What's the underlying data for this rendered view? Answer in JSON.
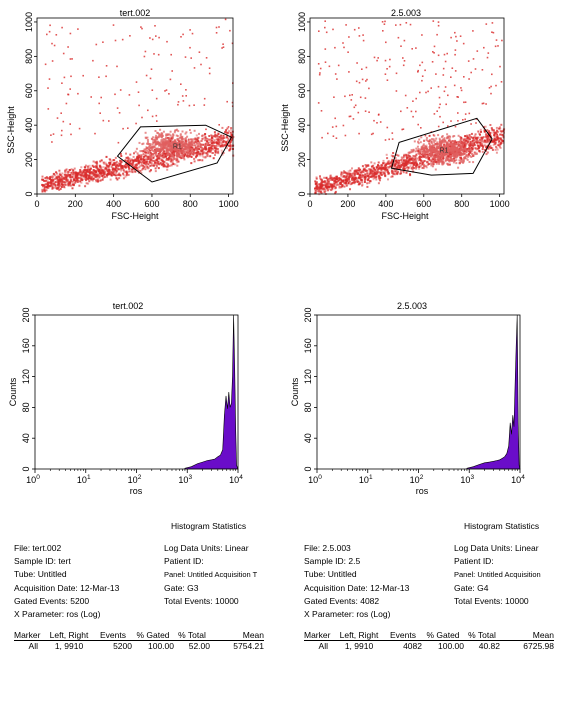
{
  "chart_data": [
    {
      "type": "scatter",
      "title": "tert.002",
      "xlabel": "FSC-Height",
      "ylabel": "SSC-Height",
      "xlim": [
        0,
        1023
      ],
      "ylim": [
        0,
        1023
      ],
      "xticks": [
        "0",
        "200",
        "400",
        "600",
        "800",
        "1000"
      ],
      "yticks": [
        "0",
        "200",
        "400",
        "600",
        "800",
        "1000"
      ],
      "gate_label": "R1",
      "gate_polygon": [
        [
          420,
          220
        ],
        [
          540,
          390
        ],
        [
          880,
          400
        ],
        [
          1015,
          330
        ],
        [
          940,
          180
        ],
        [
          600,
          70
        ]
      ],
      "density_color": "#d92b2b"
    },
    {
      "type": "scatter",
      "title": "2.5.003",
      "xlabel": "FSC-Height",
      "ylabel": "SSC-Height",
      "xlim": [
        0,
        1023
      ],
      "ylim": [
        0,
        1023
      ],
      "xticks": [
        "0",
        "200",
        "400",
        "600",
        "800",
        "1000"
      ],
      "yticks": [
        "0",
        "200",
        "400",
        "600",
        "800",
        "1000"
      ],
      "gate_label": "R1",
      "gate_polygon": [
        [
          430,
          150
        ],
        [
          470,
          300
        ],
        [
          880,
          440
        ],
        [
          960,
          320
        ],
        [
          860,
          120
        ],
        [
          640,
          110
        ]
      ],
      "density_color": "#d92b2b"
    },
    {
      "type": "area",
      "title": "tert.002",
      "xlabel": "ros",
      "ylabel": "Counts",
      "xscale": "log",
      "xticks": [
        "10^0",
        "10^1",
        "10^2",
        "10^3",
        "10^4"
      ],
      "yticks": [
        "0",
        "40",
        "80",
        "120",
        "160",
        "200"
      ],
      "ylim": [
        0,
        200
      ],
      "fill_color": "#6a0dc9",
      "x": [
        900,
        1200,
        1600,
        2000,
        2500,
        3000,
        3500,
        4000,
        4500,
        5000,
        5400,
        5800,
        6200,
        6600,
        7000,
        7400,
        7800,
        8200,
        8600,
        9000,
        9400,
        9800,
        10000
      ],
      "values": [
        1,
        3,
        7,
        9,
        11,
        12,
        13,
        16,
        18,
        25,
        70,
        95,
        78,
        100,
        80,
        85,
        120,
        200,
        130,
        50,
        5,
        1,
        0
      ]
    },
    {
      "type": "area",
      "title": "2.5.003",
      "xlabel": "ros",
      "ylabel": "Counts",
      "xscale": "log",
      "xticks": [
        "10^0",
        "10^1",
        "10^2",
        "10^3",
        "10^4"
      ],
      "yticks": [
        "0",
        "40",
        "80",
        "120",
        "160",
        "200"
      ],
      "ylim": [
        0,
        200
      ],
      "fill_color": "#6a0dc9",
      "x": [
        900,
        1200,
        1600,
        2000,
        2500,
        3000,
        3500,
        4000,
        4500,
        5000,
        5500,
        6000,
        6400,
        6800,
        7200,
        7600,
        8000,
        8400,
        8800,
        9200,
        9600,
        10000
      ],
      "values": [
        1,
        3,
        6,
        8,
        9,
        10,
        11,
        12,
        14,
        16,
        20,
        30,
        60,
        45,
        70,
        55,
        110,
        160,
        200,
        60,
        5,
        0
      ]
    }
  ],
  "stats": [
    {
      "header": "Histogram Statistics",
      "left": [
        "File: tert.002",
        "Sample ID: tert",
        "Tube: Untitled",
        "Acquisition Date: 12-Mar-13",
        "Gated Events: 5200",
        "X Parameter: ros (Log)"
      ],
      "right": [
        "Log Data Units: Linear",
        "Patient ID:",
        "Panel: Untitled Acquisition T",
        "Gate: G3",
        "Total Events: 10000"
      ],
      "columns": [
        "Marker",
        "Left, Right",
        "Events",
        "% Gated",
        "% Total",
        "Mean"
      ],
      "row": [
        "All",
        "1, 9910",
        "5200",
        "100.00",
        "52.00",
        "5754.21"
      ]
    },
    {
      "header": "Histogram Statistics",
      "left": [
        "File: 2.5.003",
        "Sample ID: 2.5",
        "Tube: Untitled",
        "Acquisition Date: 12-Mar-13",
        "Gated Events: 4082",
        "X Parameter: ros (Log)"
      ],
      "right": [
        "Log Data Units: Linear",
        "Patient ID:",
        "Panel: Untitled Acquisition",
        "Gate: G4",
        "Total Events: 10000"
      ],
      "columns": [
        "Marker",
        "Left, Right",
        "Events",
        "% Gated",
        "% Total",
        "Mean"
      ],
      "row": [
        "All",
        "1, 9910",
        "4082",
        "100.00",
        "40.82",
        "6725.98"
      ]
    }
  ]
}
